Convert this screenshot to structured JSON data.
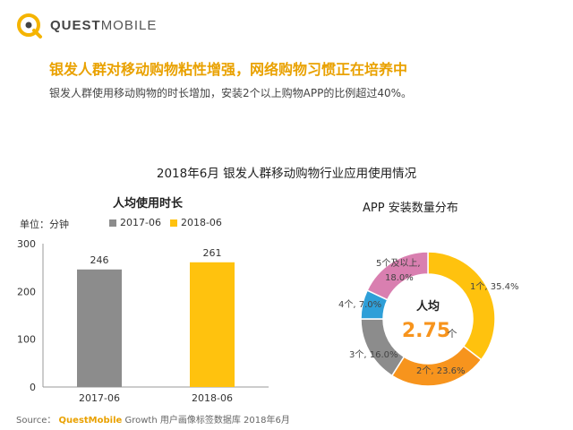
{
  "brand": {
    "name_bold": "QUEST",
    "name_rest": "MOBILE"
  },
  "header": {
    "headline": "银发人群对移动购物粘性增强，网络购物习惯正在培养中",
    "subline": "银发人群使用移动购物的时长增加，安装2个以上购物APP的比例超过40%。"
  },
  "main_title": "2018年6月 银发人群移动购物行业应用使用情况",
  "colors": {
    "gray": "#8c8c8c",
    "yellow": "#ffc20e",
    "orange": "#f7941d",
    "blue": "#2e9fd8",
    "pink": "#d97fb0",
    "accent": "#e9a100"
  },
  "chart_data": [
    {
      "type": "bar",
      "title": "人均使用时长",
      "unit_label": "单位：分钟",
      "categories": [
        "2017-06",
        "2018-06"
      ],
      "series": [
        {
          "name": "2017-06",
          "values": [
            246,
            null
          ],
          "color": "#8c8c8c"
        },
        {
          "name": "2018-06",
          "values": [
            null,
            261
          ],
          "color": "#ffc20e"
        }
      ],
      "values": [
        246,
        261
      ],
      "ylim": [
        0,
        300
      ],
      "yticks": [
        0,
        100,
        200,
        300
      ],
      "grid": false,
      "legend": "top"
    },
    {
      "type": "pie",
      "title": "APP 安装数量分布",
      "donut": true,
      "center_label": "人均",
      "center_value": "2.75",
      "center_unit": "个",
      "slices": [
        {
          "label": "1个, 35.4%",
          "value": 35.4,
          "color": "#ffc20e"
        },
        {
          "label": "2个, 23.6%",
          "value": 23.6,
          "color": "#f7941d"
        },
        {
          "label": "3个, 16.0%",
          "value": 16.0,
          "color": "#8c8c8c"
        },
        {
          "label": "4个, 7.0%",
          "value": 7.0,
          "color": "#2e9fd8"
        },
        {
          "label_line1": "5个及以上,",
          "label_line2": "18.0%",
          "value": 18.0,
          "color": "#d97fb0"
        }
      ]
    }
  ],
  "source": {
    "prefix": "Source：",
    "brand": "QuestMobile",
    "text": " Growth 用户画像标签数据库 2018年6月"
  }
}
